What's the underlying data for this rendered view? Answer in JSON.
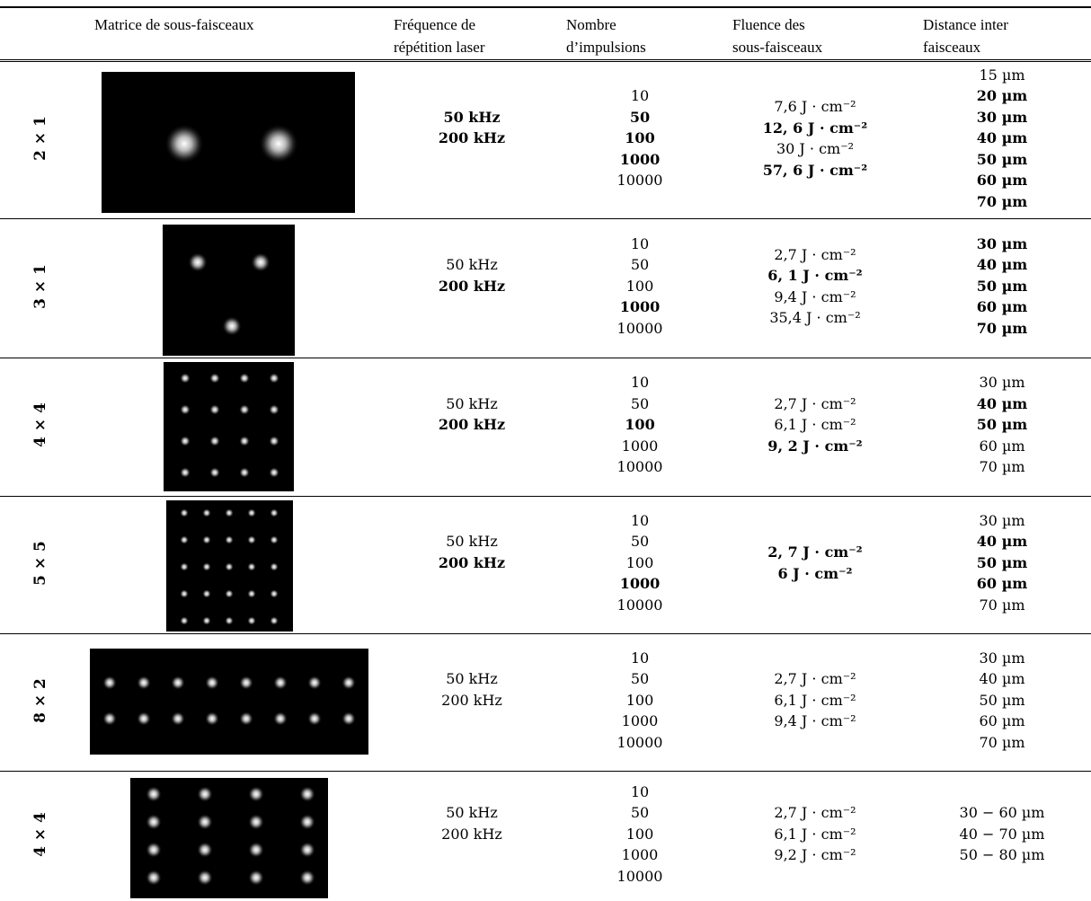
{
  "table": {
    "header": [
      [
        "Matrice de sous-faisceaux"
      ],
      [
        "Fréquence de",
        "répétition laser"
      ],
      [
        "Nombre",
        "d’impulsions"
      ],
      [
        "Fluence des",
        "sous-faisceaux"
      ],
      [
        "Distance inter",
        "faisceaux"
      ]
    ],
    "rows": [
      {
        "matrix": "2 × 1",
        "frequency": [
          {
            "text": "50 kHz",
            "bold": true
          },
          {
            "text": "200 kHz",
            "bold": true
          }
        ],
        "pulses": [
          "10",
          {
            "text": "50",
            "bold": true
          },
          {
            "text": "100",
            "bold": true
          },
          {
            "text": "1000",
            "bold": true
          },
          "10000"
        ],
        "fluence": [
          "7,6 J · cm⁻²",
          {
            "text": "12, 6 J · cm⁻²",
            "bold": true
          },
          "30 J · cm⁻²",
          {
            "text": "57, 6 J · cm⁻²",
            "bold": true
          }
        ],
        "distance": [
          "15 µm",
          {
            "text": "20 µm",
            "bold": true
          },
          {
            "text": "30 µm",
            "bold": true
          },
          {
            "text": "40 µm",
            "bold": true
          },
          {
            "text": "50 µm",
            "bold": true
          },
          {
            "text": "60 µm",
            "bold": true
          },
          {
            "text": "70 µm",
            "bold": true
          }
        ]
      },
      {
        "matrix": "3 × 1",
        "frequency": [
          "50 kHz",
          {
            "text": "200 kHz",
            "bold": true
          }
        ],
        "pulses": [
          "10",
          "50",
          "100",
          {
            "text": "1000",
            "bold": true
          },
          "10000"
        ],
        "fluence": [
          "2,7 J · cm⁻²",
          {
            "text": "6, 1 J · cm⁻²",
            "bold": true
          },
          "9,4 J · cm⁻²",
          "35,4 J · cm⁻²"
        ],
        "distance": [
          {
            "text": "30 µm",
            "bold": true
          },
          {
            "text": "40 µm",
            "bold": true
          },
          {
            "text": "50 µm",
            "bold": true
          },
          {
            "text": "60 µm",
            "bold": true
          },
          {
            "text": "70 µm",
            "bold": true
          }
        ]
      },
      {
        "matrix": "4 × 4",
        "frequency": [
          "50 kHz",
          {
            "text": "200 kHz",
            "bold": true
          }
        ],
        "pulses": [
          "10",
          "50",
          {
            "text": "100",
            "bold": true
          },
          "1000",
          "10000"
        ],
        "fluence": [
          "2,7 J · cm⁻²",
          "6,1 J · cm⁻²",
          {
            "text": "9, 2 J · cm⁻²",
            "bold": true
          }
        ],
        "distance": [
          "30 µm",
          {
            "text": "40 µm",
            "bold": true
          },
          {
            "text": "50 µm",
            "bold": true
          },
          "60 µm",
          "70 µm"
        ]
      },
      {
        "matrix": "5 × 5",
        "frequency": [
          "50 kHz",
          {
            "text": "200 kHz",
            "bold": true
          }
        ],
        "pulses": [
          "10",
          "50",
          "100",
          {
            "text": "1000",
            "bold": true
          },
          "10000"
        ],
        "fluence": [
          {
            "text": "2, 7 J · cm⁻²",
            "bold": true
          },
          {
            "text": "6 J · cm⁻²",
            "bold": true
          }
        ],
        "distance": [
          "30 µm",
          {
            "text": "40 µm",
            "bold": true
          },
          {
            "text": "50 µm",
            "bold": true
          },
          {
            "text": "60 µm",
            "bold": true
          },
          "70 µm"
        ]
      },
      {
        "matrix": "8 × 2",
        "frequency": [
          "50 kHz",
          "200 kHz"
        ],
        "pulses": [
          "10",
          "50",
          "100",
          "1000",
          "10000"
        ],
        "fluence": [
          "2,7 J · cm⁻²",
          "6,1 J · cm⁻²",
          "9,4 J · cm⁻²"
        ],
        "distance": [
          "30 µm",
          "40 µm",
          "50 µm",
          "60 µm",
          "70 µm"
        ]
      },
      {
        "matrix": "4 × 4",
        "frequency": [
          "50 kHz",
          "200 kHz"
        ],
        "pulses": [
          "10",
          "50",
          "100",
          "1000",
          "10000"
        ],
        "fluence": [
          "2,7 J · cm⁻²",
          "6,1 J · cm⁻²",
          "9,2 J · cm⁻²"
        ],
        "distance": [
          "30 − 60 µm",
          "40 − 70 µm",
          "50 − 80 µm"
        ]
      }
    ]
  }
}
